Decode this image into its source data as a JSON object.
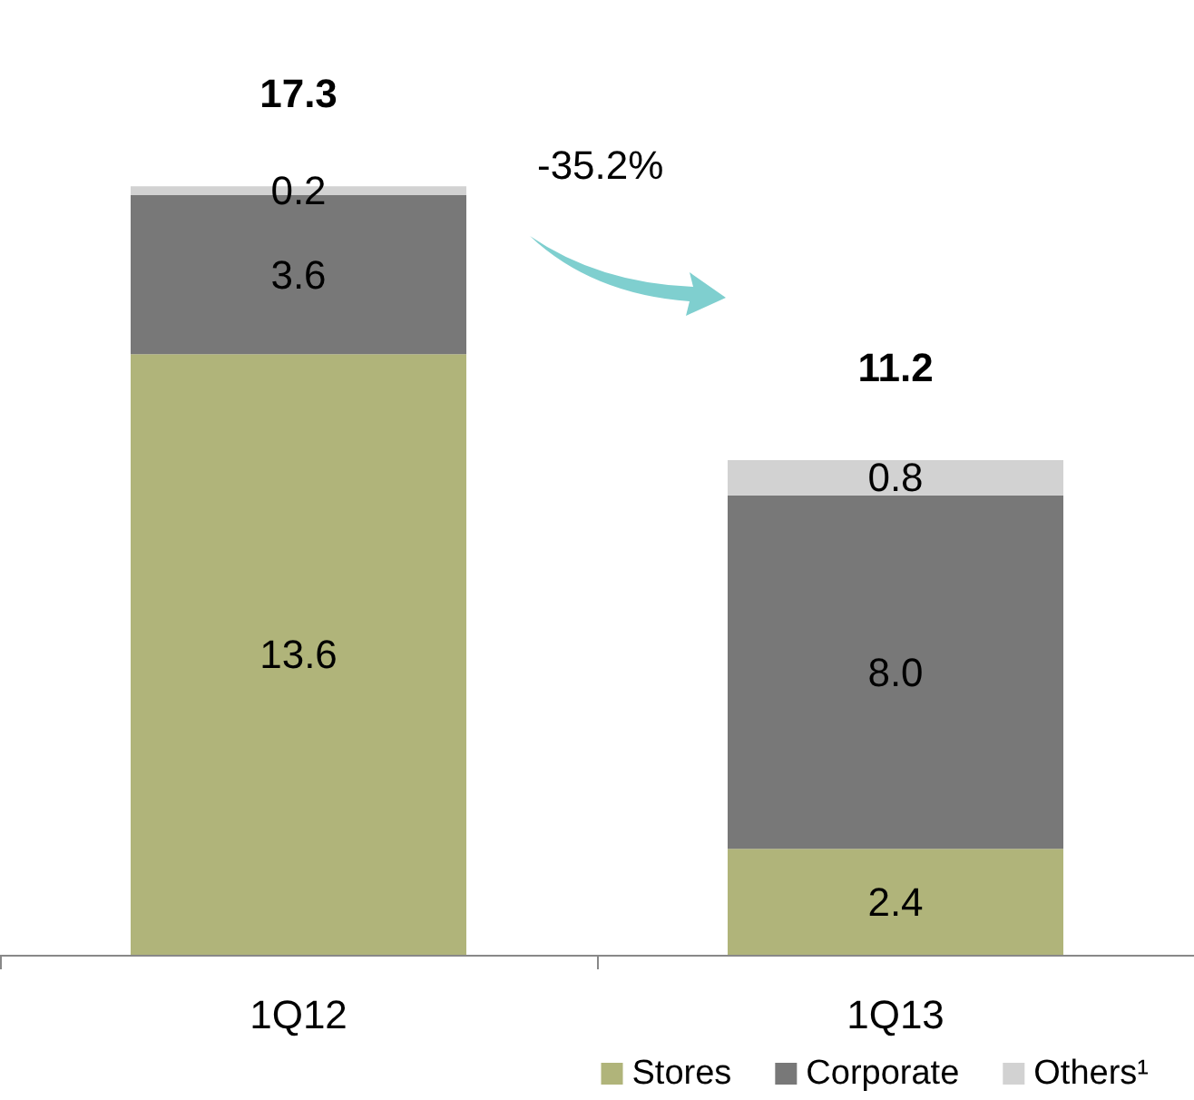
{
  "chart_data": {
    "type": "bar",
    "stacked": true,
    "categories": [
      "1Q12",
      "1Q13"
    ],
    "series": [
      {
        "name": "Stores",
        "color": "#b0b47a",
        "values": [
          13.6,
          2.4
        ],
        "value_labels": [
          "13.6",
          "2.4"
        ]
      },
      {
        "name": "Corporate",
        "color": "#787878",
        "values": [
          3.6,
          8.0
        ],
        "value_labels": [
          "3.6",
          "8.0"
        ]
      },
      {
        "name": "Others¹",
        "color": "#d2d2d2",
        "values": [
          0.2,
          0.8
        ],
        "value_labels": [
          "0.2",
          "0.8"
        ]
      }
    ],
    "totals": [
      "17.3",
      "11.2"
    ],
    "annotations": [
      "-35.2%"
    ],
    "legend": "bottom"
  }
}
